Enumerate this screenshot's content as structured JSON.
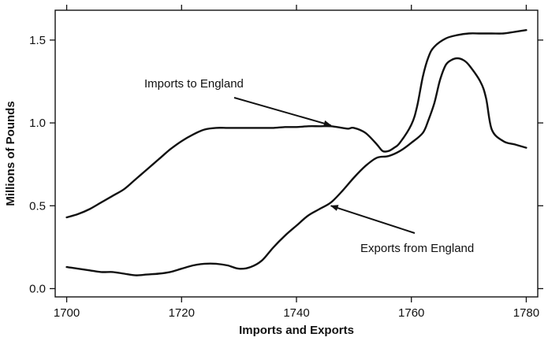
{
  "chart_data": {
    "type": "line",
    "title": "",
    "xlabel": "Imports and Exports",
    "ylabel": "Millions of Pounds",
    "xlim": [
      1698,
      1782
    ],
    "ylim": [
      -0.05,
      1.68
    ],
    "x_ticks": [
      1700,
      1720,
      1740,
      1760,
      1780
    ],
    "x_tick_labels": [
      "1700",
      "1720",
      "1740",
      "1760",
      "1780"
    ],
    "y_ticks": [
      0.0,
      0.5,
      1.0,
      1.5
    ],
    "y_tick_labels": [
      "0.0",
      "0.5",
      "1.0",
      "1.5"
    ],
    "grid": false,
    "series": [
      {
        "x": [
          1700,
          1702,
          1704,
          1706,
          1708,
          1710,
          1712,
          1714,
          1716,
          1718,
          1720,
          1722,
          1724,
          1726,
          1728,
          1730,
          1732,
          1734,
          1736,
          1738,
          1740,
          1742,
          1744,
          1746,
          1748,
          1749,
          1750,
          1752,
          1754,
          1755,
          1756,
          1757,
          1758,
          1760,
          1761,
          1762,
          1763,
          1764,
          1766,
          1768,
          1770,
          1772,
          1774,
          1776,
          1778,
          1780
        ],
        "values": [
          0.43,
          0.45,
          0.48,
          0.52,
          0.56,
          0.6,
          0.66,
          0.72,
          0.78,
          0.84,
          0.89,
          0.93,
          0.96,
          0.97,
          0.97,
          0.97,
          0.97,
          0.97,
          0.97,
          0.975,
          0.975,
          0.98,
          0.98,
          0.98,
          0.97,
          0.965,
          0.97,
          0.94,
          0.87,
          0.83,
          0.83,
          0.85,
          0.88,
          0.99,
          1.1,
          1.28,
          1.4,
          1.46,
          1.51,
          1.53,
          1.54,
          1.54,
          1.54,
          1.54,
          1.55,
          1.56
        ]
      },
      {
        "x": [
          1700,
          1702,
          1704,
          1706,
          1708,
          1710,
          1712,
          1714,
          1716,
          1718,
          1720,
          1722,
          1724,
          1726,
          1728,
          1730,
          1732,
          1734,
          1736,
          1738,
          1740,
          1742,
          1744,
          1746,
          1748,
          1750,
          1752,
          1754,
          1756,
          1758,
          1760,
          1762,
          1763,
          1764,
          1765,
          1766,
          1767,
          1768,
          1769,
          1770,
          1772,
          1773,
          1774,
          1776,
          1778,
          1780
        ],
        "values": [
          0.13,
          0.12,
          0.11,
          0.1,
          0.1,
          0.09,
          0.08,
          0.085,
          0.09,
          0.1,
          0.12,
          0.14,
          0.15,
          0.15,
          0.14,
          0.12,
          0.13,
          0.17,
          0.25,
          0.32,
          0.38,
          0.44,
          0.48,
          0.52,
          0.59,
          0.67,
          0.74,
          0.79,
          0.8,
          0.83,
          0.88,
          0.94,
          1.02,
          1.12,
          1.26,
          1.35,
          1.38,
          1.39,
          1.38,
          1.35,
          1.25,
          1.15,
          0.96,
          0.89,
          0.87,
          0.85
        ]
      }
    ],
    "annotations": [
      {
        "text": "Imports to England",
        "series_index": 0,
        "arrow_to": [
          1746,
          0.985
        ]
      },
      {
        "text": "Exports from England",
        "series_index": 1,
        "arrow_to": [
          1746,
          0.5
        ]
      }
    ]
  }
}
